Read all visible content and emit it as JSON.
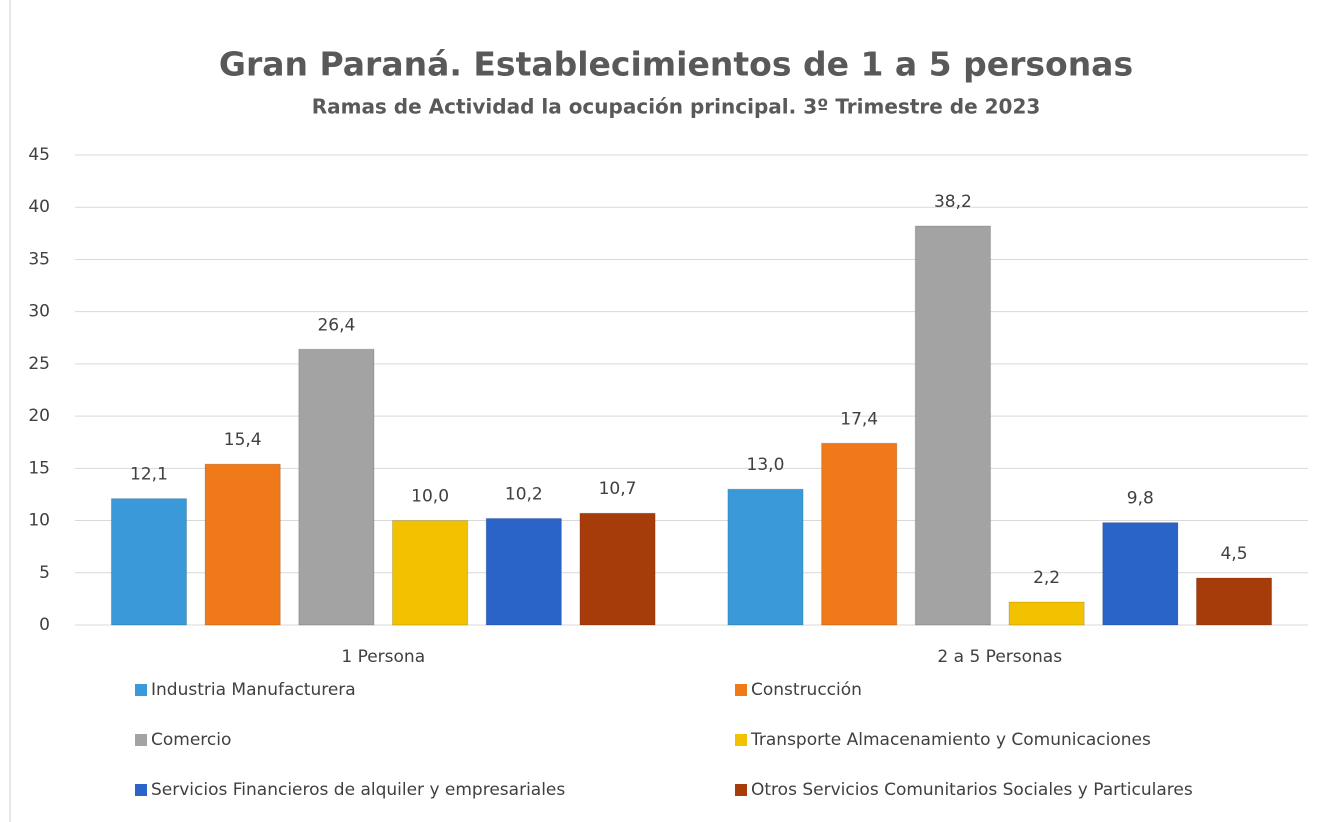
{
  "chart_data": {
    "type": "bar",
    "title": "Gran Paraná. Establecimientos  de 1 a 5 personas",
    "subtitle": "Ramas de Actividad la ocupación principal. 3º Trimestre de 2023",
    "categories": [
      "1 Persona",
      "2 a 5 Personas"
    ],
    "series": [
      {
        "name": "Industria Manufacturera",
        "color": "#3a9ad9",
        "values": [
          12.1,
          13.0
        ],
        "value_labels": [
          "12,1",
          "13,0"
        ]
      },
      {
        "name": "Construcción",
        "color": "#f07a1a",
        "values": [
          15.4,
          17.4
        ],
        "value_labels": [
          "15,4",
          "17,4"
        ]
      },
      {
        "name": "Comercio",
        "color": "#a3a3a3",
        "values": [
          26.4,
          38.2
        ],
        "value_labels": [
          "26,4",
          "38,2"
        ]
      },
      {
        "name": "Transporte Almacenamiento y Comunicaciones",
        "color": "#f2c200",
        "values": [
          10.0,
          2.2
        ],
        "value_labels": [
          "10,0",
          "2,2"
        ]
      },
      {
        "name": "Servicios Financieros de alquiler y empresariales",
        "color": "#2a64c8",
        "values": [
          10.2,
          9.8
        ],
        "value_labels": [
          "10,2",
          "9,8"
        ]
      },
      {
        "name": "Otros Servicios Comunitarios Sociales y Particulares",
        "color": "#a63c0a",
        "values": [
          10.7,
          4.5
        ],
        "value_labels": [
          "10,7",
          "4,5"
        ]
      }
    ],
    "ylim": [
      0,
      45
    ],
    "yticks": [
      0,
      5,
      10,
      15,
      20,
      25,
      30,
      35,
      40,
      45
    ],
    "grid": true
  }
}
